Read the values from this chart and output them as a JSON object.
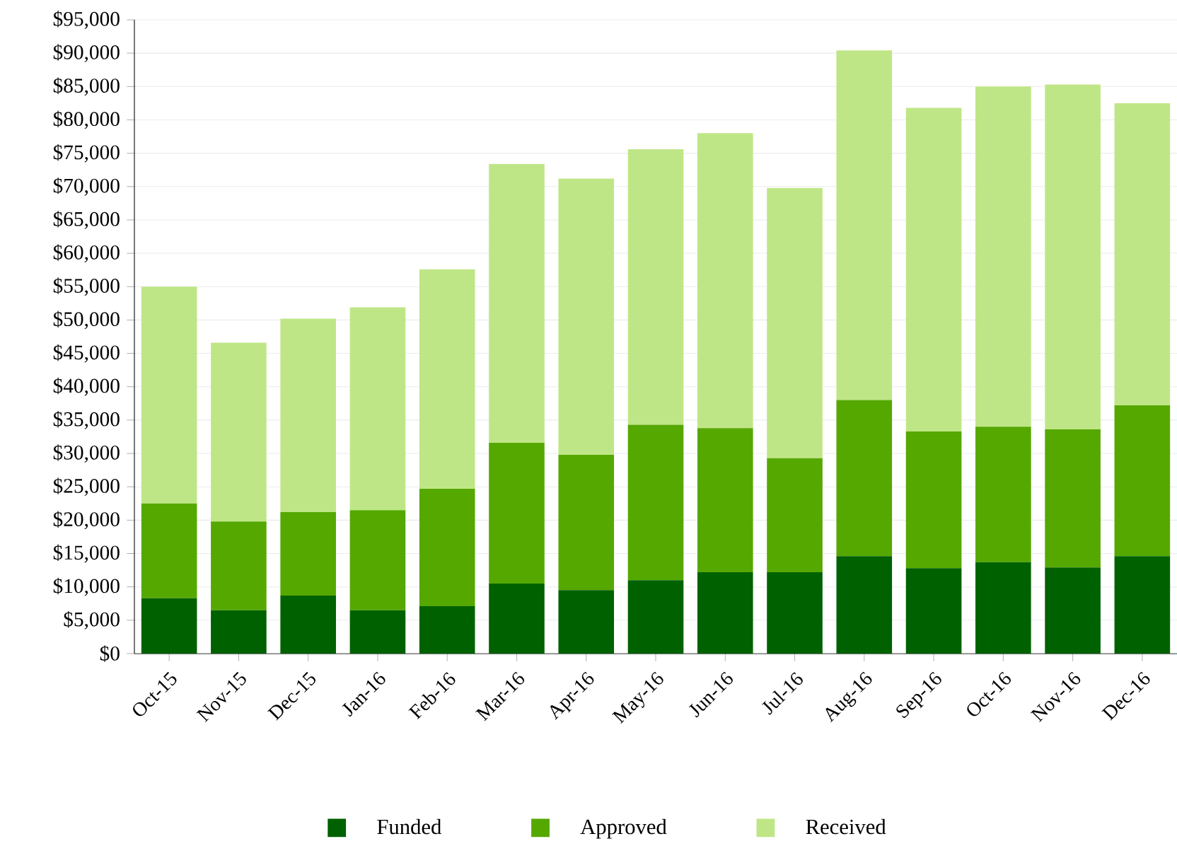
{
  "chart_data": {
    "type": "bar",
    "stacked": true,
    "grid": "y",
    "legend": "bottom",
    "categories": [
      "Oct-15",
      "Nov-15",
      "Dec-15",
      "Jan-16",
      "Feb-16",
      "Mar-16",
      "Apr-16",
      "May-16",
      "Jun-16",
      "Jul-16",
      "Aug-16",
      "Sep-16",
      "Oct-16",
      "Nov-16",
      "Dec-16"
    ],
    "series": [
      {
        "name": "Funded",
        "color": "#006100",
        "values": [
          8300,
          6500,
          8700,
          6500,
          7100,
          10500,
          9500,
          11000,
          12200,
          12200,
          14600,
          12800,
          13700,
          12900,
          14600
        ]
      },
      {
        "name": "Approved",
        "color": "#55a800",
        "values": [
          14200,
          13300,
          12500,
          15000,
          17600,
          21100,
          20300,
          23300,
          21600,
          17100,
          23400,
          20500,
          20300,
          20700,
          22600
        ]
      },
      {
        "name": "Received",
        "color": "#bfe686",
        "values": [
          32500,
          26800,
          29000,
          30400,
          32900,
          41800,
          41400,
          41300,
          44200,
          40500,
          52400,
          48500,
          51000,
          51700,
          45300
        ]
      }
    ],
    "ylim": [
      0,
      95000
    ],
    "yticks": [
      {
        "value": 0,
        "label": "$0"
      },
      {
        "value": 5000,
        "label": "$5,000"
      },
      {
        "value": 10000,
        "label": "$10,000"
      },
      {
        "value": 15000,
        "label": "$15,000"
      },
      {
        "value": 20000,
        "label": "$20,000"
      },
      {
        "value": 25000,
        "label": "$25,000"
      },
      {
        "value": 30000,
        "label": "$30,000"
      },
      {
        "value": 35000,
        "label": "$35,000"
      },
      {
        "value": 40000,
        "label": "$40,000"
      },
      {
        "value": 45000,
        "label": "$45,000"
      },
      {
        "value": 50000,
        "label": "$50,000"
      },
      {
        "value": 55000,
        "label": "$55,000"
      },
      {
        "value": 60000,
        "label": "$60,000"
      },
      {
        "value": 65000,
        "label": "$65,000"
      },
      {
        "value": 70000,
        "label": "$70,000"
      },
      {
        "value": 75000,
        "label": "$75,000"
      },
      {
        "value": 80000,
        "label": "$80,000"
      },
      {
        "value": 85000,
        "label": "$85,000"
      },
      {
        "value": 90000,
        "label": "$90,000"
      },
      {
        "value": 95000,
        "label": "$95,000"
      }
    ]
  }
}
